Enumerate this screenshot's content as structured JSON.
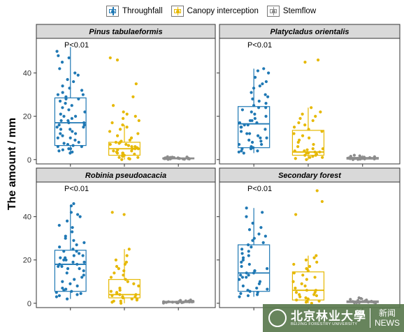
{
  "legend": [
    {
      "name": "Throughfall",
      "color": "#1f78b4"
    },
    {
      "name": "Canopy interception",
      "color": "#e6b800"
    },
    {
      "name": "Stemflow",
      "color": "#8c8c8c"
    }
  ],
  "y_axis_title": "The amount / mm",
  "watermark": {
    "cn": "北京林业大學",
    "en": "BEIJING FORESTRY UNIVERSITY",
    "news_cn": "新闻",
    "news_en": "NEWS"
  },
  "chart_data": [
    {
      "type": "box",
      "title": "Pinus tabulaeformis",
      "annotation": "P<0.01",
      "ylim": [
        -2,
        56
      ],
      "yticks": [
        0,
        20,
        40
      ],
      "categories": [
        "Throughfall",
        "Canopy interception",
        "Stemflow"
      ],
      "boxes": [
        {
          "min": 3,
          "q1": 6.5,
          "median": 17,
          "q3": 28.5,
          "max": 52
        },
        {
          "min": 0,
          "q1": 2,
          "median": 5,
          "q3": 8,
          "max": 16
        },
        {
          "min": 0.1,
          "q1": 0.3,
          "median": 0.5,
          "q3": 0.8,
          "max": 1.3
        }
      ],
      "points": [
        [
          3,
          3.5,
          4,
          4.5,
          5,
          5,
          6,
          6,
          6.5,
          7,
          7.5,
          8,
          9,
          10,
          10,
          11,
          12,
          12,
          13,
          14,
          14,
          15,
          15,
          16,
          16,
          17,
          17,
          18,
          18,
          19,
          20,
          20,
          21,
          22,
          23,
          24,
          25,
          26,
          27,
          28,
          28,
          29,
          30,
          30,
          31,
          32,
          33,
          34,
          36,
          37,
          39,
          40,
          42,
          45,
          47,
          48,
          50
        ],
        [
          0,
          0.3,
          0.5,
          1,
          1,
          1.5,
          2,
          2,
          2.5,
          3,
          3,
          3,
          3.5,
          4,
          4,
          4.5,
          5,
          5,
          5,
          5.5,
          6,
          6,
          6.5,
          7,
          7,
          7.5,
          8,
          8,
          8.5,
          9,
          10,
          11,
          12,
          13,
          14,
          15,
          16,
          17,
          18,
          19,
          20,
          21,
          22,
          25,
          29,
          35,
          46,
          47
        ],
        [
          0.1,
          0.2,
          0.2,
          0.3,
          0.3,
          0.3,
          0.4,
          0.4,
          0.4,
          0.5,
          0.5,
          0.5,
          0.5,
          0.6,
          0.6,
          0.6,
          0.7,
          0.7,
          0.8,
          0.8,
          0.9,
          1,
          1.1,
          1.2,
          1.3
        ]
      ]
    },
    {
      "type": "box",
      "title": "Platycladus orientalis",
      "annotation": "P<0.01",
      "ylim": [
        -2,
        56
      ],
      "yticks": [
        0,
        20,
        40
      ],
      "categories": [
        "Throughfall",
        "Canopy interception",
        "Stemflow"
      ],
      "boxes": [
        {
          "min": 3,
          "q1": 5.5,
          "median": 16.5,
          "q3": 24.5,
          "max": 42
        },
        {
          "min": 0,
          "q1": 2,
          "median": 3.5,
          "q3": 13.5,
          "max": 24
        },
        {
          "min": 0,
          "q1": 0.2,
          "median": 0.5,
          "q3": 1.0,
          "max": 2.0
        }
      ],
      "points": [
        [
          3,
          3.5,
          4,
          4,
          5,
          5,
          5.5,
          6,
          7,
          7,
          8,
          8.5,
          9,
          10,
          10,
          11,
          12,
          12,
          13,
          14,
          15,
          15,
          16,
          16,
          17,
          17,
          18,
          18,
          19,
          20,
          21,
          22,
          23,
          24,
          24,
          25,
          26,
          27,
          28,
          29,
          30,
          31,
          33,
          34,
          35,
          36,
          38,
          40,
          41,
          42
        ],
        [
          0,
          0.5,
          1,
          1,
          1.5,
          2,
          2,
          2.5,
          3,
          3,
          3.5,
          3.5,
          4,
          4,
          4.5,
          5,
          5,
          6,
          7,
          8,
          9,
          10,
          11,
          12,
          13,
          14,
          15,
          16,
          17,
          18,
          19,
          20,
          21,
          22,
          24,
          45,
          46
        ],
        [
          0,
          0.1,
          0.2,
          0.3,
          0.3,
          0.4,
          0.4,
          0.5,
          0.5,
          0.5,
          0.6,
          0.6,
          0.7,
          0.8,
          0.9,
          1,
          1.1,
          1.3,
          1.5,
          1.7,
          2
        ]
      ]
    },
    {
      "type": "box",
      "title": "Robinia pseudoacacia",
      "annotation": "P<0.01",
      "ylim": [
        -2,
        56
      ],
      "yticks": [
        0,
        20,
        40
      ],
      "categories": [
        "Throughfall",
        "Canopy interception",
        "Stemflow"
      ],
      "boxes": [
        {
          "min": 2,
          "q1": 5.5,
          "median": 18,
          "q3": 24.5,
          "max": 45
        },
        {
          "min": 0,
          "q1": 2.5,
          "median": 4,
          "q3": 11,
          "max": 25
        },
        {
          "min": 0.1,
          "q1": 0.3,
          "median": 0.5,
          "q3": 0.9,
          "max": 1.5
        }
      ],
      "points": [
        [
          2,
          3,
          3.5,
          4,
          4.5,
          5,
          5.5,
          6,
          6.5,
          7,
          8,
          9,
          10,
          11,
          12,
          13,
          14,
          15,
          16,
          16,
          17,
          17,
          18,
          18,
          19,
          19,
          20,
          20,
          21,
          21,
          22,
          22,
          23,
          24,
          24,
          25,
          26,
          27,
          28,
          29,
          30,
          31,
          33,
          35,
          36,
          38,
          40,
          41,
          42,
          45,
          46
        ],
        [
          0,
          0.5,
          1,
          1,
          1.5,
          2,
          2,
          2.5,
          3,
          3,
          3.5,
          4,
          4,
          4.5,
          5,
          5.5,
          6,
          7,
          8,
          9,
          10,
          11,
          12,
          13,
          14,
          15,
          16,
          17,
          18,
          19,
          20,
          22,
          25,
          41,
          42
        ],
        [
          0.1,
          0.2,
          0.2,
          0.3,
          0.3,
          0.4,
          0.4,
          0.5,
          0.5,
          0.5,
          0.6,
          0.6,
          0.7,
          0.7,
          0.8,
          0.9,
          1,
          1.1,
          1.3,
          1.5
        ]
      ]
    },
    {
      "type": "box",
      "title": "Secondary forest",
      "annotation": "P<0.01",
      "ylim": [
        -2,
        56
      ],
      "yticks": [
        0,
        20,
        40
      ],
      "categories": [
        "Throughfall",
        "Canopy interception",
        "Stemflow"
      ],
      "boxes": [
        {
          "min": 3,
          "q1": 5.5,
          "median": 14,
          "q3": 27,
          "max": 44
        },
        {
          "min": 0,
          "q1": 1.5,
          "median": 6,
          "q3": 14.5,
          "max": 22
        },
        {
          "min": 0.1,
          "q1": 0.3,
          "median": 0.6,
          "q3": 1.1,
          "max": 2.5
        }
      ],
      "points": [
        [
          3,
          3.5,
          4,
          4.5,
          5,
          5.5,
          6,
          6.5,
          7,
          8,
          9,
          10,
          11,
          12,
          12,
          13,
          13,
          14,
          14,
          15,
          15,
          16,
          17,
          18,
          19,
          20,
          21,
          22,
          23,
          24,
          25,
          26,
          27,
          28,
          29,
          30,
          31,
          32,
          34,
          35,
          37,
          40,
          42,
          44
        ],
        [
          0,
          0.5,
          1,
          1,
          1.5,
          2,
          2.5,
          3,
          3.5,
          4,
          4,
          5,
          5,
          6,
          6,
          7,
          8,
          9,
          10,
          11,
          12,
          13,
          14,
          15,
          16,
          17,
          18,
          19,
          20,
          21,
          22,
          41,
          47,
          52
        ],
        [
          0.1,
          0.2,
          0.3,
          0.3,
          0.4,
          0.5,
          0.5,
          0.6,
          0.6,
          0.7,
          0.8,
          0.9,
          1,
          1.1,
          1.3,
          1.5,
          1.8,
          2.2,
          2.5
        ]
      ]
    }
  ]
}
